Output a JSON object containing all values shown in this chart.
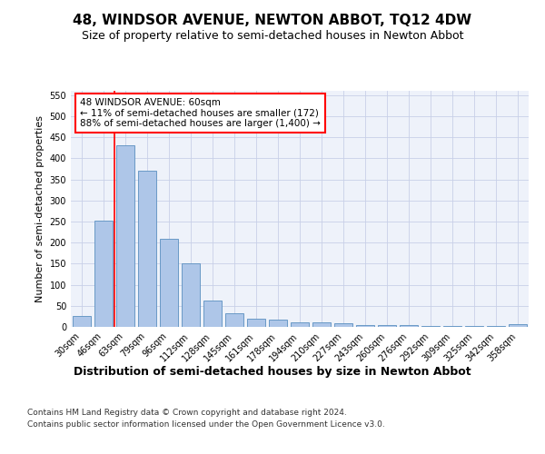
{
  "title": "48, WINDSOR AVENUE, NEWTON ABBOT, TQ12 4DW",
  "subtitle": "Size of property relative to semi-detached houses in Newton Abbot",
  "xlabel": "Distribution of semi-detached houses by size in Newton Abbot",
  "ylabel": "Number of semi-detached properties",
  "footnote1": "Contains HM Land Registry data © Crown copyright and database right 2024.",
  "footnote2": "Contains public sector information licensed under the Open Government Licence v3.0.",
  "annotation_line1": "48 WINDSOR AVENUE: 60sqm",
  "annotation_line2": "← 11% of semi-detached houses are smaller (172)",
  "annotation_line3": "88% of semi-detached houses are larger (1,400) →",
  "bar_labels": [
    "30sqm",
    "46sqm",
    "63sqm",
    "79sqm",
    "96sqm",
    "112sqm",
    "128sqm",
    "145sqm",
    "161sqm",
    "178sqm",
    "194sqm",
    "210sqm",
    "227sqm",
    "243sqm",
    "260sqm",
    "276sqm",
    "292sqm",
    "309sqm",
    "325sqm",
    "342sqm",
    "358sqm"
  ],
  "bar_values": [
    25,
    253,
    430,
    370,
    210,
    150,
    63,
    33,
    20,
    18,
    10,
    10,
    8,
    5,
    5,
    5,
    3,
    3,
    2,
    3,
    7
  ],
  "bar_color": "#aec6e8",
  "bar_edge_color": "#5a8fc0",
  "vline_x": 1.5,
  "vline_color": "red",
  "ylim": [
    0,
    560
  ],
  "yticks": [
    0,
    50,
    100,
    150,
    200,
    250,
    300,
    350,
    400,
    450,
    500,
    550
  ],
  "bg_color": "#eef2fa",
  "grid_color": "#c8d0e8",
  "title_fontsize": 11,
  "subtitle_fontsize": 9,
  "xlabel_fontsize": 9,
  "ylabel_fontsize": 8,
  "tick_fontsize": 7,
  "annot_fontsize": 7.5,
  "footnote_fontsize": 6.5
}
